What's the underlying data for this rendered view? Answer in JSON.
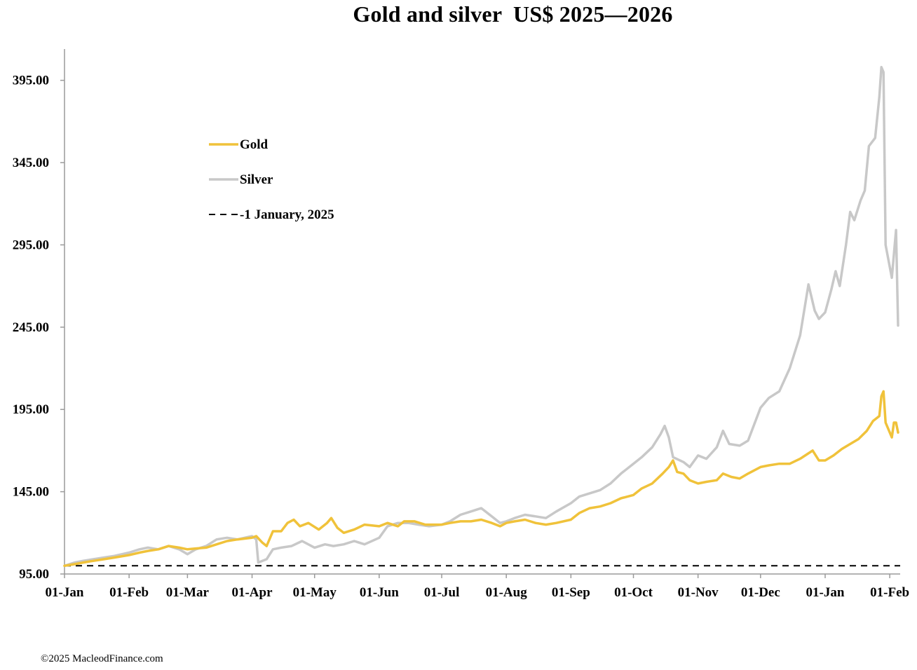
{
  "chart_data": {
    "type": "line",
    "title": "Gold and silver  US$ 2025—2026",
    "xlabel": "",
    "ylabel": "",
    "ylim": [
      95,
      414
    ],
    "y_ticks": [
      "95.00",
      "145.00",
      "195.00",
      "245.00",
      "295.00",
      "345.00",
      "395.00"
    ],
    "y_tick_values": [
      95,
      145,
      195,
      245,
      295,
      345,
      395
    ],
    "x_ticks": [
      "01-Jan",
      "01-Feb",
      "01-Mar",
      "01-Apr",
      "01-May",
      "01-Jun",
      "01-Jul",
      "01-Aug",
      "01-Sep",
      "01-Oct",
      "01-Nov",
      "01-Dec",
      "01-Jan",
      "01-Feb"
    ],
    "x_tick_dates": [
      "2025-01-01",
      "2025-02-01",
      "2025-03-01",
      "2025-04-01",
      "2025-05-01",
      "2025-06-01",
      "2025-07-01",
      "2025-08-01",
      "2025-09-01",
      "2025-10-01",
      "2025-11-01",
      "2025-12-01",
      "2026-01-01",
      "2026-02-01"
    ],
    "xlim": [
      "2025-01-01",
      "2026-02-06"
    ],
    "grid": false,
    "legend_position": "upper-left",
    "series": [
      {
        "name": "Gold",
        "color": "#f0c23a",
        "style": "solid",
        "points": [
          [
            "2025-01-01",
            100
          ],
          [
            "2025-01-06",
            101
          ],
          [
            "2025-01-10",
            102
          ],
          [
            "2025-01-15",
            103
          ],
          [
            "2025-01-20",
            104
          ],
          [
            "2025-01-25",
            105
          ],
          [
            "2025-02-01",
            106.5
          ],
          [
            "2025-02-06",
            108
          ],
          [
            "2025-02-10",
            109
          ],
          [
            "2025-02-15",
            110
          ],
          [
            "2025-02-20",
            112
          ],
          [
            "2025-02-25",
            111
          ],
          [
            "2025-03-01",
            110
          ],
          [
            "2025-03-05",
            110.5
          ],
          [
            "2025-03-10",
            111
          ],
          [
            "2025-03-15",
            113
          ],
          [
            "2025-03-20",
            115
          ],
          [
            "2025-03-25",
            116
          ],
          [
            "2025-04-01",
            117
          ],
          [
            "2025-04-03",
            118
          ],
          [
            "2025-04-06",
            114
          ],
          [
            "2025-04-08",
            112
          ],
          [
            "2025-04-11",
            121
          ],
          [
            "2025-04-15",
            121
          ],
          [
            "2025-04-18",
            126
          ],
          [
            "2025-04-21",
            128
          ],
          [
            "2025-04-24",
            124
          ],
          [
            "2025-04-28",
            126
          ],
          [
            "2025-05-03",
            122
          ],
          [
            "2025-05-07",
            126
          ],
          [
            "2025-05-09",
            129
          ],
          [
            "2025-05-12",
            123
          ],
          [
            "2025-05-15",
            120
          ],
          [
            "2025-05-20",
            122
          ],
          [
            "2025-05-25",
            125
          ],
          [
            "2025-06-01",
            124
          ],
          [
            "2025-06-05",
            126
          ],
          [
            "2025-06-10",
            124
          ],
          [
            "2025-06-13",
            127
          ],
          [
            "2025-06-18",
            127
          ],
          [
            "2025-06-23",
            125
          ],
          [
            "2025-06-28",
            125
          ],
          [
            "2025-07-01",
            125
          ],
          [
            "2025-07-05",
            126
          ],
          [
            "2025-07-10",
            127
          ],
          [
            "2025-07-15",
            127
          ],
          [
            "2025-07-20",
            128
          ],
          [
            "2025-07-25",
            126
          ],
          [
            "2025-07-29",
            124
          ],
          [
            "2025-08-01",
            126
          ],
          [
            "2025-08-05",
            127
          ],
          [
            "2025-08-10",
            128
          ],
          [
            "2025-08-15",
            126
          ],
          [
            "2025-08-20",
            125
          ],
          [
            "2025-08-25",
            126
          ],
          [
            "2025-09-01",
            128
          ],
          [
            "2025-09-05",
            132
          ],
          [
            "2025-09-10",
            135
          ],
          [
            "2025-09-15",
            136
          ],
          [
            "2025-09-20",
            138
          ],
          [
            "2025-09-25",
            141
          ],
          [
            "2025-10-01",
            143
          ],
          [
            "2025-10-05",
            147
          ],
          [
            "2025-10-10",
            150
          ],
          [
            "2025-10-15",
            156
          ],
          [
            "2025-10-18",
            160
          ],
          [
            "2025-10-20",
            164
          ],
          [
            "2025-10-22",
            157
          ],
          [
            "2025-10-25",
            156
          ],
          [
            "2025-10-28",
            152
          ],
          [
            "2025-11-01",
            150
          ],
          [
            "2025-11-05",
            151
          ],
          [
            "2025-11-10",
            152
          ],
          [
            "2025-11-13",
            156
          ],
          [
            "2025-11-17",
            154
          ],
          [
            "2025-11-21",
            153
          ],
          [
            "2025-11-25",
            156
          ],
          [
            "2025-12-01",
            160
          ],
          [
            "2025-12-05",
            161
          ],
          [
            "2025-12-10",
            162
          ],
          [
            "2025-12-15",
            162
          ],
          [
            "2025-12-20",
            165
          ],
          [
            "2025-12-26",
            170
          ],
          [
            "2025-12-29",
            164
          ],
          [
            "2026-01-01",
            164
          ],
          [
            "2026-01-05",
            167
          ],
          [
            "2026-01-09",
            171
          ],
          [
            "2026-01-13",
            174
          ],
          [
            "2026-01-17",
            177
          ],
          [
            "2026-01-21",
            182
          ],
          [
            "2026-01-24",
            188
          ],
          [
            "2026-01-27",
            191
          ],
          [
            "2026-01-28",
            203
          ],
          [
            "2026-01-29",
            206
          ],
          [
            "2026-01-30",
            187
          ],
          [
            "2026-02-02",
            178
          ],
          [
            "2026-02-03",
            187
          ],
          [
            "2026-02-04",
            187
          ],
          [
            "2026-02-05",
            181
          ]
        ]
      },
      {
        "name": "Silver",
        "color": "#c8c8c8",
        "style": "solid",
        "points": [
          [
            "2025-01-01",
            100
          ],
          [
            "2025-01-06",
            102
          ],
          [
            "2025-01-10",
            103
          ],
          [
            "2025-01-15",
            104
          ],
          [
            "2025-01-20",
            105
          ],
          [
            "2025-01-25",
            106
          ],
          [
            "2025-02-01",
            108
          ],
          [
            "2025-02-06",
            110
          ],
          [
            "2025-02-10",
            111
          ],
          [
            "2025-02-15",
            110
          ],
          [
            "2025-02-20",
            112
          ],
          [
            "2025-02-25",
            110
          ],
          [
            "2025-03-01",
            107
          ],
          [
            "2025-03-05",
            110
          ],
          [
            "2025-03-10",
            112
          ],
          [
            "2025-03-15",
            116
          ],
          [
            "2025-03-20",
            117
          ],
          [
            "2025-03-25",
            116
          ],
          [
            "2025-04-01",
            118
          ],
          [
            "2025-04-03",
            116
          ],
          [
            "2025-04-04",
            102
          ],
          [
            "2025-04-08",
            104
          ],
          [
            "2025-04-11",
            110
          ],
          [
            "2025-04-15",
            111
          ],
          [
            "2025-04-20",
            112
          ],
          [
            "2025-04-25",
            115
          ],
          [
            "2025-05-01",
            111
          ],
          [
            "2025-05-06",
            113
          ],
          [
            "2025-05-10",
            112
          ],
          [
            "2025-05-15",
            113
          ],
          [
            "2025-05-20",
            115
          ],
          [
            "2025-05-25",
            113
          ],
          [
            "2025-06-01",
            117
          ],
          [
            "2025-06-05",
            124
          ],
          [
            "2025-06-10",
            126
          ],
          [
            "2025-06-15",
            126
          ],
          [
            "2025-06-20",
            125
          ],
          [
            "2025-06-25",
            124
          ],
          [
            "2025-07-01",
            125
          ],
          [
            "2025-07-05",
            127
          ],
          [
            "2025-07-10",
            131
          ],
          [
            "2025-07-15",
            133
          ],
          [
            "2025-07-20",
            135
          ],
          [
            "2025-07-25",
            130
          ],
          [
            "2025-07-29",
            126
          ],
          [
            "2025-08-01",
            127
          ],
          [
            "2025-08-05",
            129
          ],
          [
            "2025-08-10",
            131
          ],
          [
            "2025-08-15",
            130
          ],
          [
            "2025-08-20",
            129
          ],
          [
            "2025-08-25",
            133
          ],
          [
            "2025-09-01",
            138
          ],
          [
            "2025-09-05",
            142
          ],
          [
            "2025-09-10",
            144
          ],
          [
            "2025-09-15",
            146
          ],
          [
            "2025-09-20",
            150
          ],
          [
            "2025-09-25",
            156
          ],
          [
            "2025-10-01",
            162
          ],
          [
            "2025-10-05",
            166
          ],
          [
            "2025-10-10",
            172
          ],
          [
            "2025-10-14",
            180
          ],
          [
            "2025-10-16",
            185
          ],
          [
            "2025-10-18",
            178
          ],
          [
            "2025-10-20",
            166
          ],
          [
            "2025-10-25",
            163
          ],
          [
            "2025-10-28",
            160
          ],
          [
            "2025-11-01",
            167
          ],
          [
            "2025-11-05",
            165
          ],
          [
            "2025-11-10",
            172
          ],
          [
            "2025-11-13",
            182
          ],
          [
            "2025-11-16",
            174
          ],
          [
            "2025-11-21",
            173
          ],
          [
            "2025-11-25",
            176
          ],
          [
            "2025-12-01",
            196
          ],
          [
            "2025-12-05",
            202
          ],
          [
            "2025-12-10",
            206
          ],
          [
            "2025-12-15",
            220
          ],
          [
            "2025-12-20",
            240
          ],
          [
            "2025-12-24",
            271
          ],
          [
            "2025-12-27",
            255
          ],
          [
            "2025-12-29",
            250
          ],
          [
            "2026-01-01",
            254
          ],
          [
            "2026-01-04",
            268
          ],
          [
            "2026-01-06",
            279
          ],
          [
            "2026-01-08",
            270
          ],
          [
            "2026-01-11",
            295
          ],
          [
            "2026-01-13",
            315
          ],
          [
            "2026-01-15",
            310
          ],
          [
            "2026-01-18",
            322
          ],
          [
            "2026-01-20",
            328
          ],
          [
            "2026-01-22",
            355
          ],
          [
            "2026-01-25",
            360
          ],
          [
            "2026-01-27",
            385
          ],
          [
            "2026-01-28",
            403
          ],
          [
            "2026-01-29",
            400
          ],
          [
            "2026-01-30",
            295
          ],
          [
            "2026-02-02",
            275
          ],
          [
            "2026-02-04",
            304
          ],
          [
            "2026-02-05",
            246
          ]
        ]
      },
      {
        "name": "-1 January, 2025",
        "color": "#000000",
        "style": "dashed",
        "points": [
          [
            "2025-01-01",
            100
          ],
          [
            "2026-02-06",
            100
          ]
        ]
      }
    ]
  },
  "footer": {
    "copyright": "©2025 MacleodFinance.com"
  }
}
